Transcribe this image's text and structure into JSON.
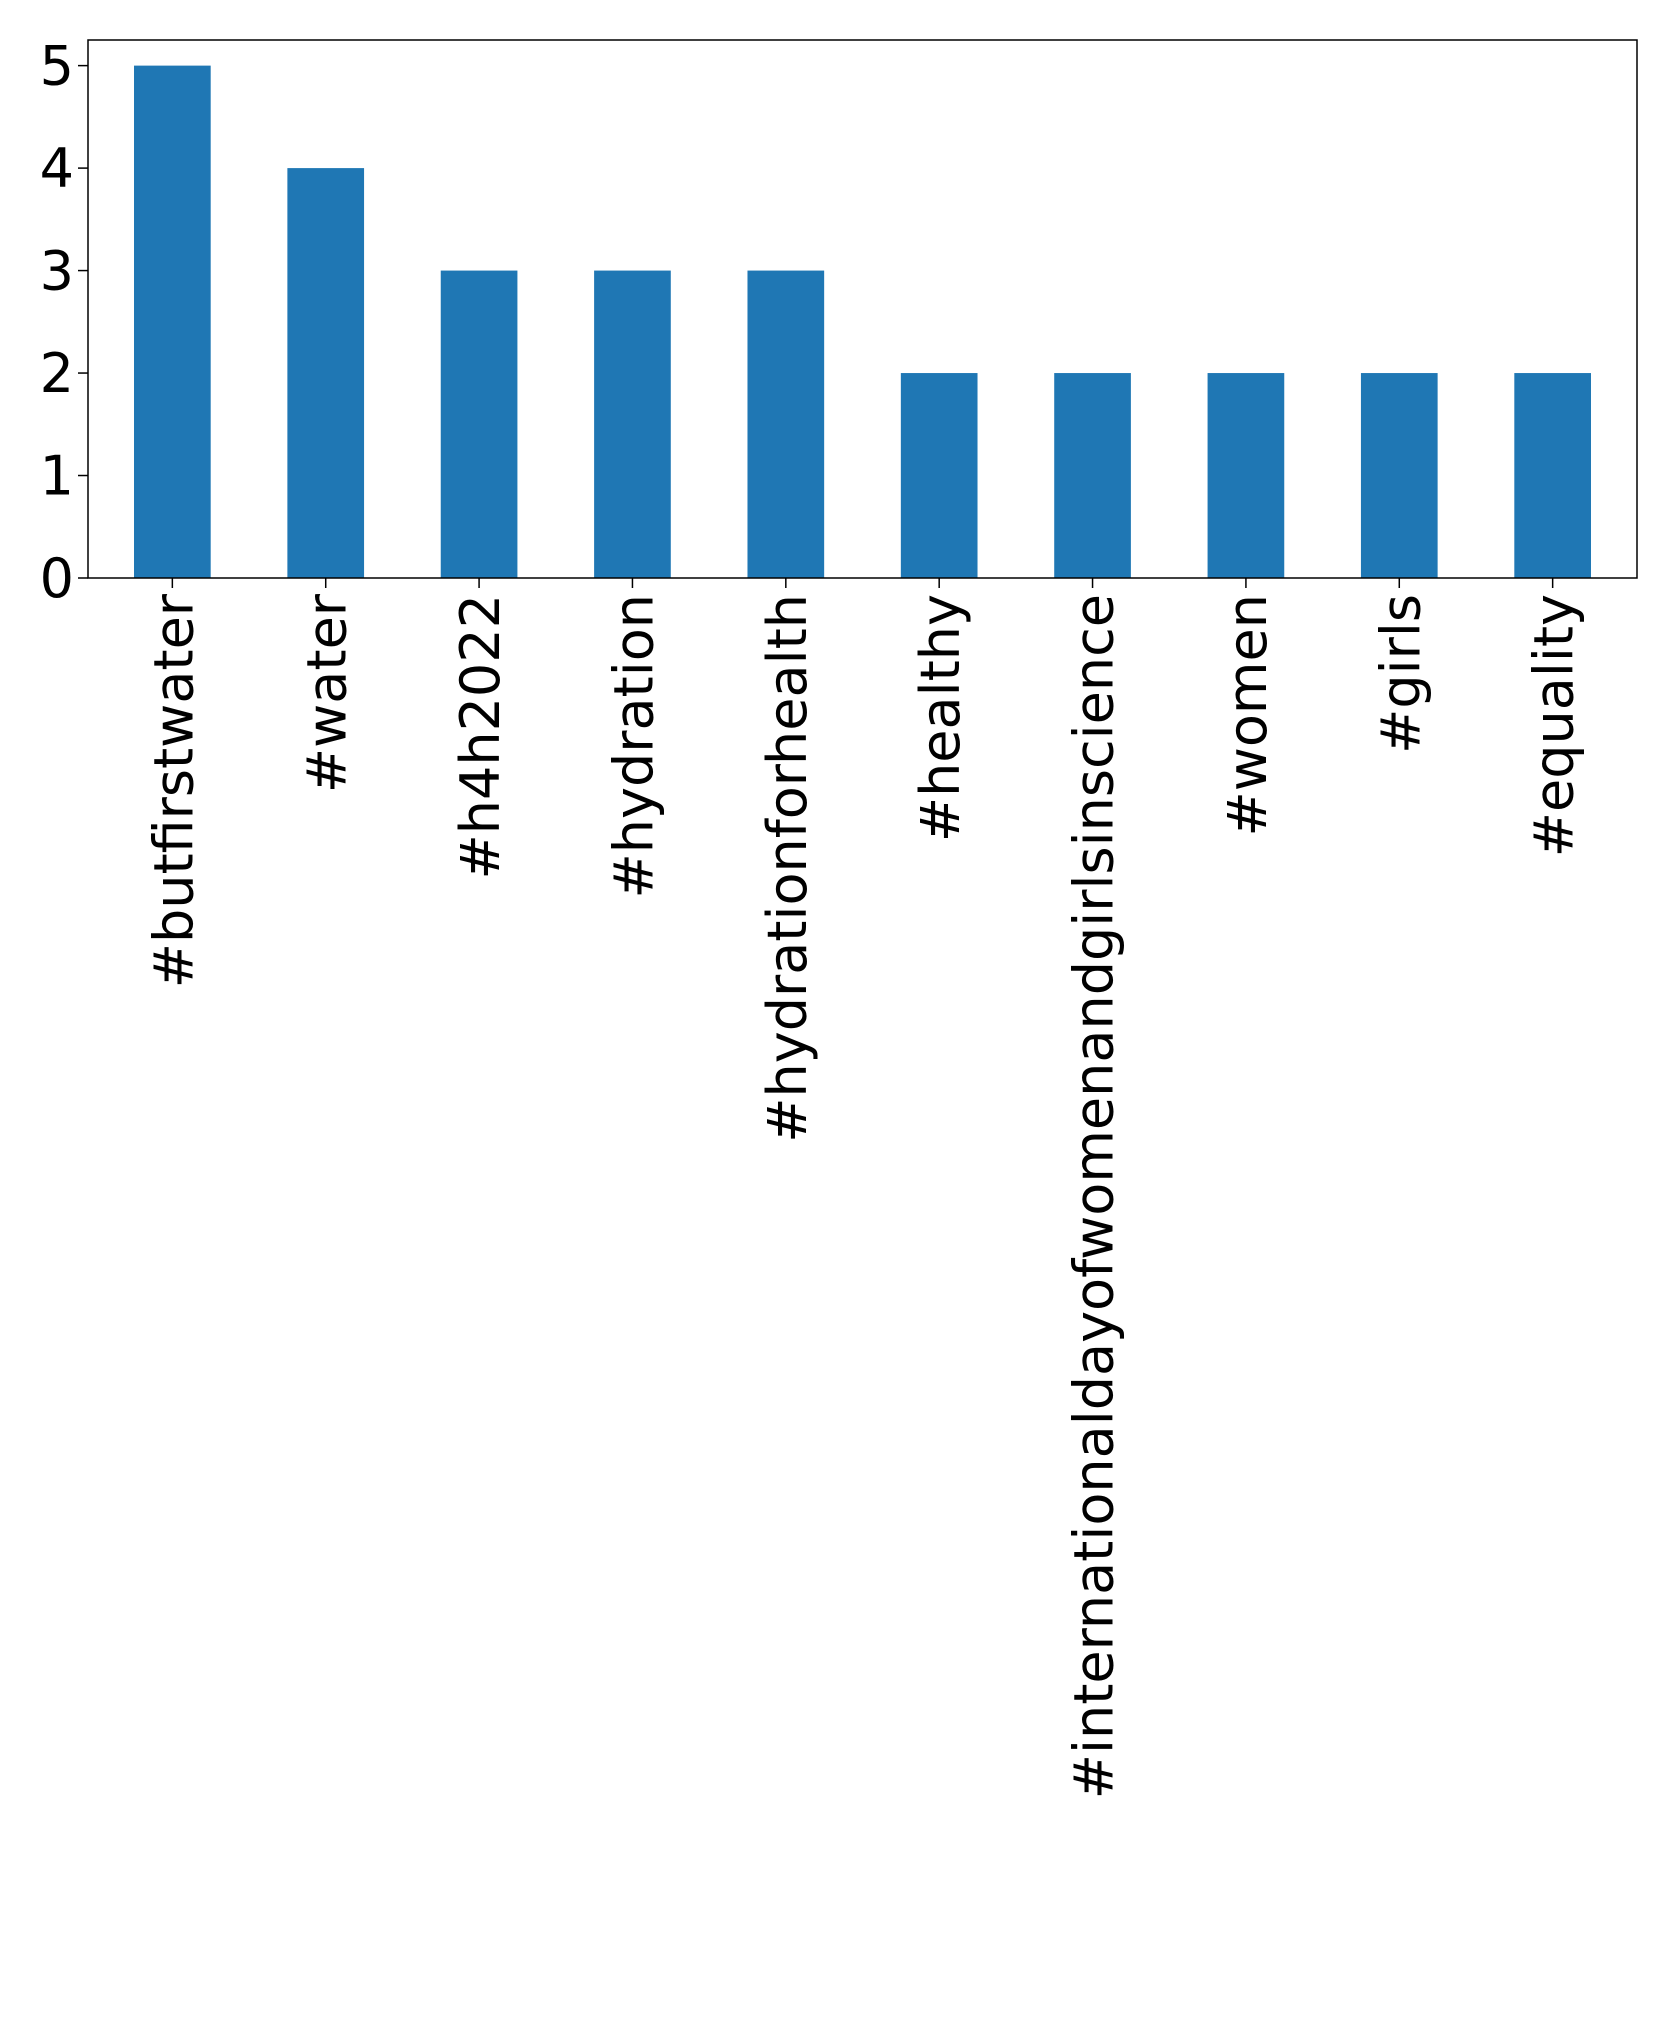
{
  "chart_data": {
    "type": "bar",
    "title": "",
    "xlabel": "",
    "ylabel": "",
    "categories": [
      "#butfirstwater",
      "#water",
      "#h4h2022",
      "#hydration",
      "#hydrationforhealth",
      "#healthy",
      "#internationaldayofwomenandgirlsinscience",
      "#women",
      "#girls",
      "#equality"
    ],
    "values": [
      5,
      4,
      3,
      3,
      3,
      2,
      2,
      2,
      2,
      2
    ],
    "yticks": [
      "0",
      "1",
      "2",
      "3",
      "4",
      "5"
    ],
    "ylim": [
      0,
      5.25
    ],
    "grid": false,
    "legend": "none",
    "bar_color": "#1f77b4"
  }
}
